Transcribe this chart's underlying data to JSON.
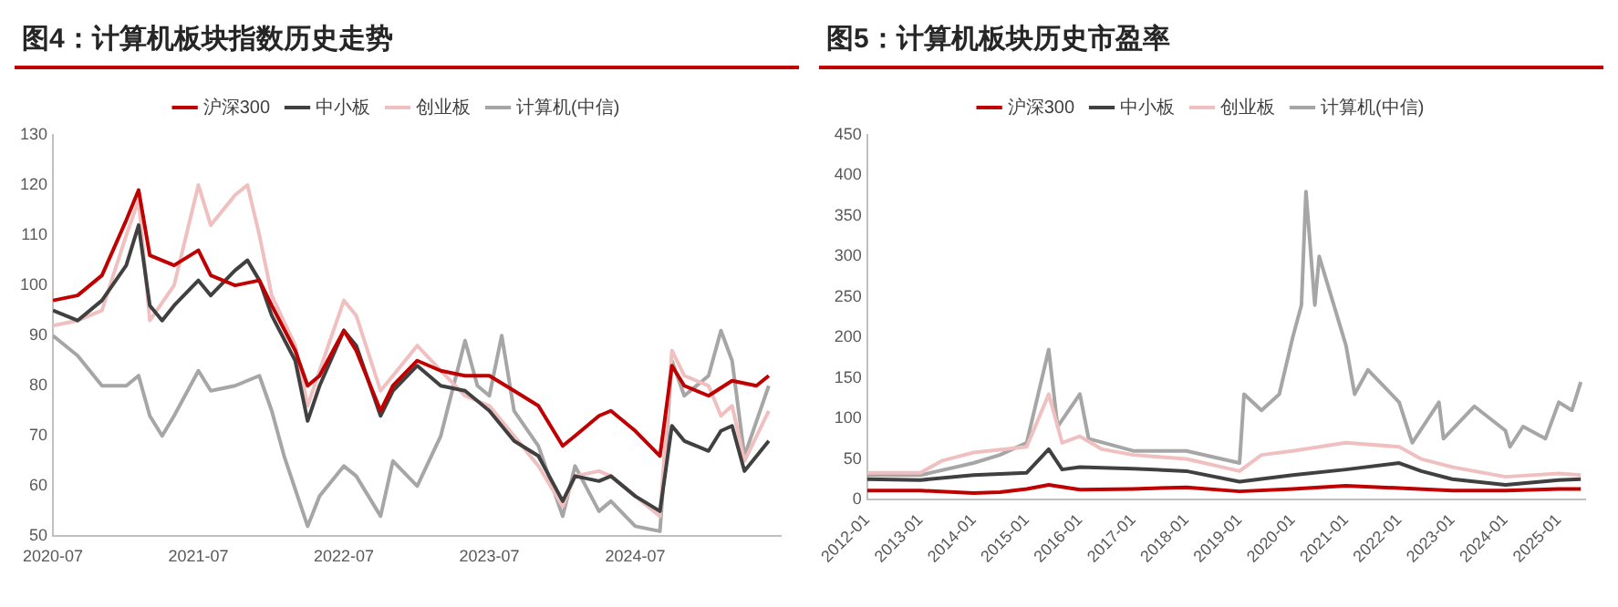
{
  "chart_data": [
    {
      "type": "line",
      "title": "图4：计算机板块指数历史走势",
      "xlim": [
        "2020-07",
        "2025-07"
      ],
      "xticks": [
        "2020-07",
        "2021-07",
        "2022-07",
        "2023-07",
        "2024-07"
      ],
      "ylim": [
        50,
        130
      ],
      "yticks": [
        50,
        60,
        70,
        80,
        90,
        100,
        110,
        120,
        130
      ],
      "grid": false,
      "legend": "top",
      "marker": "none",
      "line_style": "solid",
      "series": [
        {
          "name": "沪深300",
          "color": "#c00000",
          "x": [
            "2020-07",
            "2020-09",
            "2020-11",
            "2021-01",
            "2021-02",
            "2021-03",
            "2021-05",
            "2021-07",
            "2021-08",
            "2021-10",
            "2021-12",
            "2022-01",
            "2022-03",
            "2022-04",
            "2022-05",
            "2022-07",
            "2022-08",
            "2022-10",
            "2022-11",
            "2023-01",
            "2023-03",
            "2023-05",
            "2023-07",
            "2023-09",
            "2023-11",
            "2024-01",
            "2024-02",
            "2024-04",
            "2024-05",
            "2024-07",
            "2024-09",
            "2024-10",
            "2024-11",
            "2025-01",
            "2025-03",
            "2025-05",
            "2025-06"
          ],
          "values": [
            97,
            98,
            102,
            113,
            119,
            106,
            104,
            107,
            102,
            100,
            101,
            96,
            87,
            80,
            82,
            91,
            87,
            75,
            80,
            85,
            83,
            82,
            82,
            79,
            76,
            68,
            70,
            74,
            75,
            71,
            66,
            84,
            80,
            78,
            81,
            80,
            82
          ]
        },
        {
          "name": "中小板",
          "color": "#404040",
          "x": [
            "2020-07",
            "2020-09",
            "2020-11",
            "2021-01",
            "2021-02",
            "2021-03",
            "2021-04",
            "2021-05",
            "2021-07",
            "2021-08",
            "2021-10",
            "2021-11",
            "2021-12",
            "2022-01",
            "2022-03",
            "2022-04",
            "2022-05",
            "2022-07",
            "2022-08",
            "2022-10",
            "2022-11",
            "2023-01",
            "2023-03",
            "2023-05",
            "2023-07",
            "2023-09",
            "2023-11",
            "2024-01",
            "2024-02",
            "2024-04",
            "2024-05",
            "2024-07",
            "2024-09",
            "2024-10",
            "2024-11",
            "2025-01",
            "2025-02",
            "2025-03",
            "2025-04",
            "2025-06"
          ],
          "values": [
            95,
            93,
            97,
            104,
            112,
            96,
            93,
            96,
            101,
            98,
            103,
            105,
            101,
            94,
            85,
            73,
            80,
            91,
            88,
            74,
            79,
            84,
            80,
            79,
            75,
            69,
            66,
            57,
            62,
            61,
            62,
            58,
            55,
            72,
            69,
            67,
            71,
            72,
            63,
            69
          ]
        },
        {
          "name": "创业板",
          "color": "#f0c0c0",
          "x": [
            "2020-07",
            "2020-09",
            "2020-11",
            "2021-01",
            "2021-02",
            "2021-03",
            "2021-05",
            "2021-07",
            "2021-08",
            "2021-10",
            "2021-11",
            "2021-12",
            "2022-01",
            "2022-03",
            "2022-04",
            "2022-05",
            "2022-07",
            "2022-08",
            "2022-10",
            "2022-11",
            "2023-01",
            "2023-03",
            "2023-05",
            "2023-07",
            "2023-09",
            "2023-11",
            "2024-01",
            "2024-02",
            "2024-04",
            "2024-05",
            "2024-07",
            "2024-09",
            "2024-10",
            "2024-11",
            "2025-01",
            "2025-02",
            "2025-03",
            "2025-04",
            "2025-06"
          ],
          "values": [
            92,
            93,
            95,
            110,
            117,
            93,
            100,
            120,
            112,
            118,
            120,
            110,
            98,
            88,
            76,
            83,
            97,
            94,
            79,
            82,
            88,
            83,
            78,
            76,
            70,
            64,
            56,
            62,
            63,
            62,
            58,
            54,
            87,
            82,
            80,
            74,
            76,
            65,
            75
          ]
        },
        {
          "name": "计算机(中信)",
          "color": "#a6a6a6",
          "x": [
            "2020-07",
            "2020-09",
            "2020-11",
            "2021-01",
            "2021-02",
            "2021-03",
            "2021-04",
            "2021-05",
            "2021-07",
            "2021-08",
            "2021-10",
            "2021-12",
            "2022-01",
            "2022-02",
            "2022-04",
            "2022-05",
            "2022-07",
            "2022-08",
            "2022-10",
            "2022-11",
            "2023-01",
            "2023-03",
            "2023-05",
            "2023-06",
            "2023-07",
            "2023-08",
            "2023-09",
            "2023-11",
            "2024-01",
            "2024-02",
            "2024-04",
            "2024-05",
            "2024-07",
            "2024-09",
            "2024-10",
            "2024-11",
            "2025-01",
            "2025-02",
            "2025-03",
            "2025-04",
            "2025-06"
          ],
          "values": [
            90,
            86,
            80,
            80,
            82,
            74,
            70,
            74,
            83,
            79,
            80,
            82,
            75,
            66,
            52,
            58,
            64,
            62,
            54,
            65,
            60,
            70,
            89,
            80,
            78,
            90,
            75,
            68,
            54,
            64,
            55,
            57,
            52,
            51,
            85,
            78,
            82,
            91,
            85,
            66,
            80
          ]
        }
      ]
    },
    {
      "type": "line",
      "title": "图5：计算机板块历史市盈率",
      "xlim": [
        "2012-01",
        "2025-07"
      ],
      "xticks": [
        "2012-01",
        "2013-01",
        "2014-01",
        "2015-01",
        "2016-01",
        "2017-01",
        "2018-01",
        "2019-01",
        "2020-01",
        "2021-01",
        "2022-01",
        "2023-01",
        "2024-01",
        "2025-01"
      ],
      "ylim": [
        0,
        450
      ],
      "yticks": [
        0,
        50,
        100,
        150,
        200,
        250,
        300,
        350,
        400,
        450
      ],
      "grid": false,
      "legend": "top",
      "marker": "none",
      "line_style": "solid",
      "series": [
        {
          "name": "沪深300",
          "color": "#c00000",
          "x": [
            "2012-01",
            "2013-01",
            "2014-01",
            "2014-07",
            "2015-01",
            "2015-06",
            "2016-01",
            "2017-01",
            "2018-01",
            "2019-01",
            "2020-01",
            "2021-01",
            "2022-01",
            "2023-01",
            "2024-01",
            "2025-01",
            "2025-06"
          ],
          "values": [
            11,
            11,
            8,
            9,
            13,
            18,
            12,
            13,
            15,
            10,
            13,
            17,
            14,
            11,
            11,
            13,
            13
          ]
        },
        {
          "name": "中小板",
          "color": "#404040",
          "x": [
            "2012-01",
            "2013-01",
            "2014-01",
            "2015-01",
            "2015-06",
            "2015-09",
            "2016-01",
            "2017-01",
            "2018-01",
            "2019-01",
            "2020-01",
            "2021-01",
            "2022-01",
            "2022-06",
            "2023-01",
            "2024-01",
            "2025-01",
            "2025-06"
          ],
          "values": [
            25,
            24,
            30,
            33,
            62,
            37,
            40,
            38,
            35,
            22,
            30,
            37,
            45,
            35,
            25,
            18,
            24,
            25
          ]
        },
        {
          "name": "创业板",
          "color": "#f0c0c0",
          "x": [
            "2012-01",
            "2013-01",
            "2013-06",
            "2014-01",
            "2015-01",
            "2015-06",
            "2015-09",
            "2016-01",
            "2016-06",
            "2017-01",
            "2018-01",
            "2019-01",
            "2019-06",
            "2020-01",
            "2021-01",
            "2022-01",
            "2022-06",
            "2023-01",
            "2024-01",
            "2025-01",
            "2025-06"
          ],
          "values": [
            33,
            33,
            48,
            58,
            65,
            130,
            70,
            78,
            62,
            55,
            50,
            35,
            55,
            60,
            70,
            65,
            50,
            40,
            28,
            32,
            30
          ]
        },
        {
          "name": "计算机(中信)",
          "color": "#a6a6a6",
          "x": [
            "2012-01",
            "2013-01",
            "2014-01",
            "2014-07",
            "2015-01",
            "2015-06",
            "2015-08",
            "2016-01",
            "2016-03",
            "2017-01",
            "2018-01",
            "2019-01",
            "2019-02",
            "2019-06",
            "2019-10",
            "2020-01",
            "2020-03",
            "2020-04",
            "2020-06",
            "2020-07",
            "2021-01",
            "2021-03",
            "2021-06",
            "2022-01",
            "2022-04",
            "2022-10",
            "2022-11",
            "2023-06",
            "2024-01",
            "2024-02",
            "2024-05",
            "2024-10",
            "2025-01",
            "2025-04",
            "2025-06"
          ],
          "values": [
            30,
            30,
            45,
            55,
            70,
            185,
            90,
            130,
            75,
            60,
            60,
            45,
            130,
            110,
            130,
            200,
            240,
            380,
            240,
            300,
            190,
            130,
            160,
            120,
            70,
            120,
            75,
            115,
            85,
            65,
            90,
            75,
            120,
            110,
            145
          ]
        }
      ]
    }
  ]
}
